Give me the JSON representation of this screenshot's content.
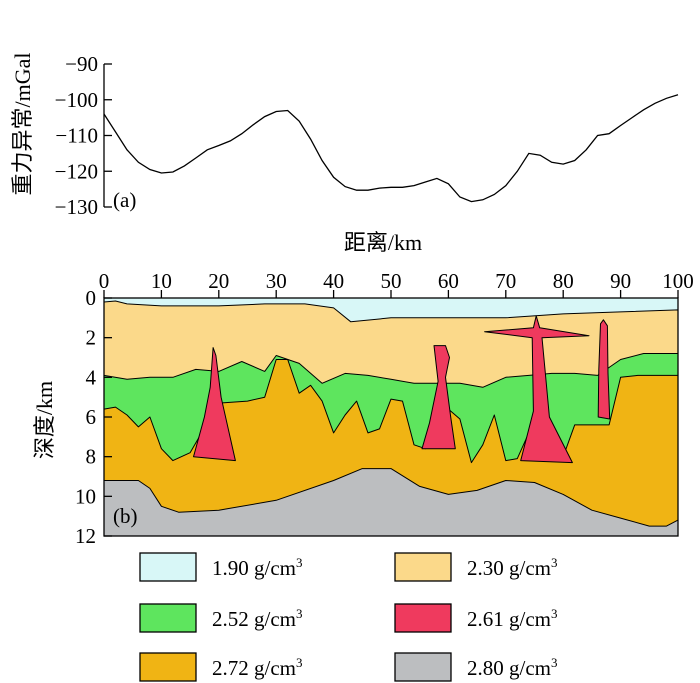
{
  "chart_data": [
    {
      "type": "line",
      "panel_label": "(a)",
      "ylabel": "重力异常/mGal",
      "ylim": [
        -130,
        -90
      ],
      "yticks": [
        -90,
        -100,
        -110,
        -120,
        -130
      ],
      "x": [
        0,
        2,
        4,
        6,
        8,
        10,
        12,
        14,
        16,
        18,
        20,
        22,
        24,
        26,
        28,
        30,
        32,
        34,
        36,
        38,
        40,
        42,
        44,
        46,
        48,
        50,
        52,
        54,
        56,
        58,
        60,
        62,
        64,
        66,
        68,
        70,
        72,
        74,
        76,
        78,
        80,
        82,
        84,
        86,
        88,
        90,
        92,
        94,
        96,
        98,
        100
      ],
      "values": [
        -104,
        -109,
        -114,
        -117.5,
        -119.5,
        -120.5,
        -120.2,
        -118.5,
        -116.3,
        -114,
        -112.8,
        -111.5,
        -109.5,
        -107,
        -104.7,
        -103.3,
        -103,
        -106,
        -111,
        -117,
        -121.7,
        -124.3,
        -125.3,
        -125.3,
        -124.7,
        -124.5,
        -124.5,
        -124,
        -123,
        -122,
        -123.5,
        -127.2,
        -128.5,
        -128,
        -126.5,
        -124,
        -120,
        -115,
        -115.5,
        -117.5,
        -118,
        -117,
        -114,
        -110,
        -109.5,
        -107.2,
        -105,
        -102.8,
        -101,
        -99.6,
        -98.6
      ]
    },
    {
      "type": "area",
      "panel_label": "(b)",
      "xlabel": "距离/km",
      "ylabel": "深度/km",
      "xlim": [
        0,
        100
      ],
      "ylim": [
        12,
        0
      ],
      "xticks": [
        0,
        10,
        20,
        30,
        40,
        50,
        60,
        70,
        80,
        90,
        100
      ],
      "yticks": [
        0,
        2,
        4,
        6,
        8,
        10,
        12
      ],
      "layers": [
        {
          "density": "2.80 g/cm³",
          "color": "#bcbec0",
          "top_x": [
            0,
            6,
            8,
            10,
            13,
            20,
            30,
            40,
            45,
            50,
            55,
            60,
            65,
            70,
            75,
            80,
            85,
            90,
            95,
            98,
            100
          ],
          "top_depth": [
            9.2,
            9.2,
            9.6,
            10.5,
            10.8,
            10.7,
            10.2,
            9.2,
            8.6,
            8.6,
            9.5,
            9.9,
            9.7,
            9.2,
            9.3,
            9.9,
            10.7,
            11.1,
            11.5,
            11.5,
            11.2
          ]
        },
        {
          "density": "2.72 g/cm³",
          "color": "#f0b414",
          "top_x": [
            0,
            2,
            4,
            6,
            8,
            10,
            12,
            15,
            20,
            25,
            28,
            30,
            32,
            34,
            36,
            38,
            40,
            42,
            44,
            46,
            48,
            50,
            52,
            54,
            56,
            58,
            60,
            62,
            64,
            66,
            68,
            70,
            72,
            74,
            76,
            78,
            80,
            82,
            84,
            86,
            88,
            90,
            93,
            95,
            100
          ],
          "top_depth": [
            5.6,
            5.5,
            5.9,
            6.5,
            6.0,
            7.6,
            8.2,
            7.8,
            5.3,
            5.2,
            5.0,
            3.1,
            3.1,
            4.8,
            4.4,
            5.2,
            6.8,
            5.9,
            5.2,
            6.8,
            6.6,
            5.1,
            5.2,
            7.4,
            7.6,
            6.3,
            5.6,
            6.1,
            8.3,
            7.4,
            5.9,
            8.2,
            8.1,
            6.8,
            5.2,
            7.6,
            8.0,
            6.4,
            6.4,
            6.4,
            6.4,
            4.0,
            3.9,
            3.9,
            3.9
          ]
        },
        {
          "density": "2.52 g/cm³",
          "color": "#5ee55e",
          "top_x": [
            0,
            4,
            8,
            12,
            16,
            20,
            24,
            28,
            30,
            34,
            38,
            42,
            46,
            50,
            54,
            58,
            62,
            66,
            70,
            74,
            78,
            82,
            86,
            90,
            94,
            100
          ],
          "top_depth": [
            3.9,
            4.1,
            4.0,
            4.0,
            3.6,
            3.7,
            3.2,
            3.7,
            2.9,
            3.3,
            4.3,
            3.8,
            3.9,
            4.1,
            4.3,
            4.3,
            4.3,
            4.5,
            4.0,
            3.9,
            3.8,
            3.8,
            3.9,
            3.1,
            2.8,
            2.8
          ]
        },
        {
          "density": "2.30 g/cm³",
          "color": "#fbd98a",
          "top_x": [
            0,
            2,
            4,
            10,
            20,
            28,
            35,
            40,
            43,
            50,
            60,
            70,
            80,
            90,
            100
          ],
          "top_depth": [
            0.2,
            0.15,
            0.3,
            0.4,
            0.4,
            0.3,
            0.3,
            0.5,
            1.2,
            1.0,
            1.0,
            1.0,
            0.8,
            0.7,
            0.6
          ]
        },
        {
          "density": "1.90 g/cm³",
          "color": "#d8f7f7",
          "top_x": [
            0,
            100
          ],
          "top_depth": [
            0.0,
            0.0
          ]
        },
        {
          "density": "2.61 g/cm³",
          "color": "#ef3a5e",
          "bodies": [
            {
              "x": [
                19.0,
                18.5,
                17.5,
                15.6,
                22.9,
                20.4,
                19.5
              ],
              "depth": [
                2.5,
                4.5,
                6.0,
                8.0,
                8.2,
                5.0,
                2.9
              ]
            },
            {
              "x": [
                57.5,
                59.5,
                60.2,
                59.5,
                60.4,
                61.2,
                55.4,
                56.7,
                58.2,
                57.5
              ],
              "depth": [
                2.4,
                2.4,
                3.0,
                4.0,
                6.0,
                7.6,
                7.6,
                6.3,
                4.2,
                2.4
              ]
            },
            {
              "x": [
                66.3,
                74.8,
                75.3,
                75.9,
                84.5,
                76.3,
                76.8,
                77.6,
                81.6,
                72.6,
                74.8,
                74.6,
                66.3
              ],
              "depth": [
                1.7,
                1.5,
                0.9,
                1.5,
                1.9,
                2.0,
                3.5,
                6.0,
                8.3,
                8.2,
                5.7,
                2.0,
                1.7
              ]
            },
            {
              "x": [
                86.5,
                87.0,
                87.7,
                87.8,
                88.1,
                86.1,
                86.2,
                86.5
              ],
              "depth": [
                1.3,
                1.1,
                1.4,
                3.8,
                6.1,
                6.0,
                3.6,
                1.3
              ]
            }
          ]
        }
      ]
    }
  ],
  "legend": [
    {
      "value": "1.90 g/cm",
      "sup": "3",
      "color": "#d8f7f7"
    },
    {
      "value": "2.30 g/cm",
      "sup": "3",
      "color": "#fbd98a"
    },
    {
      "value": "2.52 g/cm",
      "sup": "3",
      "color": "#5ee55e"
    },
    {
      "value": "2.61 g/cm",
      "sup": "3",
      "color": "#ef3a5e"
    },
    {
      "value": "2.72 g/cm",
      "sup": "3",
      "color": "#f0b414"
    },
    {
      "value": "2.80 g/cm",
      "sup": "3",
      "color": "#bcbec0"
    }
  ]
}
